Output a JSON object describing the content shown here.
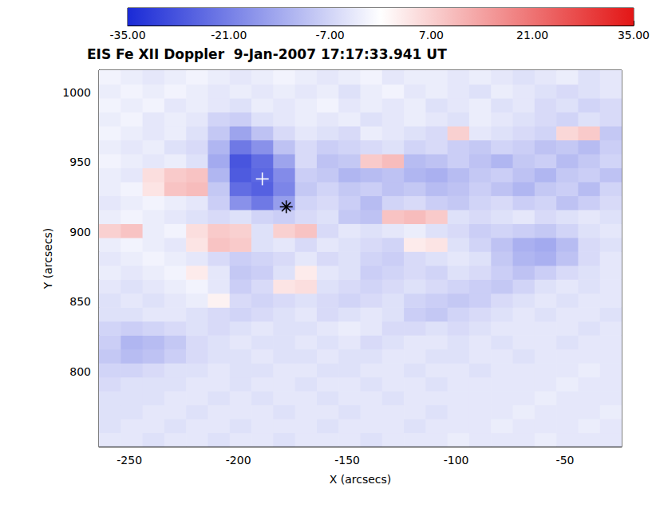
{
  "chart_data": {
    "type": "heatmap",
    "title": "EIS Fe XII Doppler  9-Jan-2007 17:17:33.941 UT",
    "xlabel": "X (arcsecs)",
    "ylabel": "Y (arcsecs)",
    "xlim": [
      -264,
      -24
    ],
    "ylim": [
      746,
      1016
    ],
    "xticks": [
      -250,
      -200,
      -150,
      -100,
      -50
    ],
    "yticks": [
      800,
      850,
      900,
      950,
      1000
    ],
    "grid": false,
    "x": [
      -259,
      -249,
      -239,
      -229,
      -219,
      -209,
      -199,
      -189,
      -179,
      -169,
      -159,
      -149,
      -139,
      -129,
      -119,
      -109,
      -99,
      -89,
      -79,
      -69,
      -59,
      -49,
      -39,
      -29
    ],
    "y": [
      751,
      761,
      771,
      781,
      791,
      801,
      811,
      821,
      831,
      841,
      851,
      861,
      871,
      881,
      891,
      901,
      911,
      921,
      931,
      941,
      951,
      961,
      971,
      981,
      991,
      1001,
      1011
    ],
    "cells": [
      [
        -4,
        -4,
        -5,
        -4,
        -4,
        -5,
        -4,
        -4,
        -5,
        -4,
        -4,
        -4,
        -5,
        -4,
        -4,
        -4,
        -3,
        -4,
        -4,
        -4,
        -3,
        -4,
        -4,
        -4
      ],
      [
        -5,
        -4,
        -4,
        -5,
        -4,
        -4,
        -5,
        -4,
        -4,
        -4,
        -5,
        -4,
        -4,
        -4,
        -5,
        -4,
        -4,
        -4,
        -3,
        -4,
        -4,
        -4,
        -3,
        -4
      ],
      [
        -5,
        -5,
        -4,
        -4,
        -5,
        -4,
        -4,
        -4,
        -5,
        -4,
        -4,
        -5,
        -4,
        -4,
        -4,
        -5,
        -4,
        -4,
        -4,
        -3,
        -4,
        -4,
        -4,
        -3
      ],
      [
        -5,
        -5,
        -5,
        -4,
        -4,
        -5,
        -4,
        -5,
        -4,
        -4,
        -5,
        -4,
        -4,
        -5,
        -4,
        -4,
        -4,
        -4,
        -4,
        -4,
        -3,
        -4,
        -4,
        -4
      ],
      [
        -6,
        -5,
        -5,
        -5,
        -4,
        -4,
        -5,
        -4,
        -4,
        -5,
        -4,
        -4,
        -5,
        -4,
        -4,
        -5,
        -4,
        -4,
        -4,
        -4,
        -4,
        -3,
        -4,
        -4
      ],
      [
        -7,
        -7,
        -6,
        -5,
        -5,
        -4,
        -5,
        -5,
        -4,
        -4,
        -5,
        -5,
        -4,
        -4,
        -5,
        -4,
        -4,
        -5,
        -4,
        -4,
        -4,
        -4,
        -3,
        -4
      ],
      [
        -9,
        -11,
        -10,
        -8,
        -6,
        -5,
        -5,
        -4,
        -5,
        -5,
        -4,
        -5,
        -5,
        -4,
        -4,
        -5,
        -5,
        -4,
        -4,
        -5,
        -4,
        -4,
        -4,
        -4
      ],
      [
        -8,
        -12,
        -11,
        -9,
        -6,
        -5,
        -4,
        -5,
        -5,
        -4,
        -5,
        -4,
        -6,
        -5,
        -4,
        -4,
        -5,
        -4,
        -5,
        -4,
        -4,
        -5,
        -4,
        -4
      ],
      [
        -7,
        -8,
        -7,
        -6,
        -5,
        -6,
        -5,
        -4,
        -5,
        -5,
        -4,
        -3,
        -4,
        -6,
        -6,
        -5,
        -6,
        -5,
        -4,
        -4,
        -4,
        -4,
        -5,
        -4
      ],
      [
        -5,
        -5,
        -4,
        -4,
        -5,
        -6,
        -7,
        -6,
        -5,
        -4,
        -6,
        -5,
        -4,
        -5,
        -8,
        -9,
        -7,
        -6,
        -5,
        -4,
        -5,
        -4,
        -4,
        -5
      ],
      [
        -5,
        -4,
        -5,
        -4,
        -3,
        2,
        -6,
        -7,
        -6,
        -5,
        -6,
        -7,
        -6,
        -5,
        -7,
        -8,
        -9,
        -8,
        -6,
        -5,
        -4,
        -5,
        -4,
        -4
      ],
      [
        -4,
        -5,
        -4,
        -3,
        -2,
        -4,
        -8,
        -6,
        4,
        5,
        -5,
        -6,
        -7,
        -6,
        -5,
        -6,
        -7,
        -8,
        -9,
        -7,
        -5,
        -4,
        -5,
        -4
      ],
      [
        -3,
        -4,
        -3,
        -2,
        3,
        -4,
        -9,
        -8,
        -5,
        3,
        -4,
        -5,
        -8,
        -7,
        -6,
        -7,
        -5,
        -6,
        -8,
        -10,
        -8,
        -6,
        -5,
        -4
      ],
      [
        -4,
        -3,
        -2,
        -3,
        -4,
        -6,
        -8,
        -7,
        -6,
        -4,
        -6,
        -5,
        -7,
        -8,
        -6,
        -5,
        -4,
        -5,
        -9,
        -12,
        -13,
        -10,
        -6,
        -4
      ],
      [
        -3,
        -2,
        -3,
        -4,
        4,
        9,
        8,
        -5,
        -4,
        -6,
        -4,
        -5,
        -6,
        -7,
        3,
        4,
        -5,
        -7,
        -10,
        -13,
        -14,
        -11,
        -6,
        -5
      ],
      [
        7,
        9,
        -3,
        -2,
        5,
        8,
        7,
        -5,
        7,
        9,
        -6,
        -4,
        -5,
        -4,
        -3,
        -5,
        -6,
        -8,
        -7,
        -8,
        -9,
        -7,
        -5,
        -4
      ],
      [
        -3,
        -2,
        -3,
        -4,
        -5,
        -6,
        -5,
        -7,
        -8,
        -6,
        -5,
        -9,
        -10,
        9,
        10,
        8,
        -5,
        -6,
        -5,
        -4,
        -6,
        -5,
        -4,
        -5
      ],
      [
        -4,
        -3,
        -2,
        -3,
        -4,
        -8,
        -18,
        -22,
        -16,
        -7,
        -6,
        -8,
        -11,
        -7,
        -6,
        -8,
        -9,
        -7,
        -6,
        -8,
        -7,
        -10,
        -8,
        -6
      ],
      [
        -3,
        -2,
        4,
        9,
        10,
        -9,
        -24,
        -26,
        -20,
        -9,
        -7,
        -9,
        -8,
        -10,
        -9,
        -11,
        -10,
        -8,
        -10,
        -12,
        -9,
        -8,
        -11,
        -7
      ],
      [
        -3,
        -4,
        5,
        8,
        9,
        -12,
        -27,
        -25,
        -19,
        -8,
        -9,
        -12,
        -11,
        -10,
        -12,
        -13,
        -11,
        -9,
        -8,
        -10,
        -12,
        -9,
        -8,
        -10
      ],
      [
        -2,
        -3,
        -4,
        -3,
        -5,
        -14,
        -28,
        -24,
        -15,
        -6,
        -10,
        -9,
        8,
        10,
        -11,
        -10,
        -8,
        -10,
        -12,
        -9,
        -8,
        -11,
        -9,
        -7
      ],
      [
        -3,
        -4,
        -3,
        -5,
        -6,
        -12,
        -22,
        -18,
        -10,
        -6,
        -8,
        -7,
        -6,
        -5,
        -7,
        -6,
        -8,
        -9,
        -7,
        -8,
        -10,
        -9,
        -11,
        -8
      ],
      [
        -2,
        -3,
        -4,
        -3,
        -5,
        -9,
        -15,
        -10,
        -6,
        -4,
        -5,
        -6,
        -3,
        -4,
        -5,
        -6,
        7,
        -4,
        -5,
        -6,
        -7,
        6,
        8,
        -9
      ],
      [
        -3,
        -2,
        -4,
        -3,
        -4,
        -7,
        -8,
        -5,
        -4,
        -3,
        -4,
        -3,
        -5,
        -4,
        -3,
        -4,
        -5,
        -3,
        -4,
        -5,
        -6,
        -7,
        -5,
        -6
      ],
      [
        -2,
        -3,
        -2,
        -4,
        -3,
        -4,
        -5,
        -3,
        -4,
        -3,
        -2,
        -4,
        -3,
        -4,
        -3,
        -5,
        -4,
        -3,
        -5,
        -4,
        -6,
        -5,
        -7,
        -6
      ],
      [
        -3,
        -2,
        -3,
        -2,
        -3,
        -4,
        -3,
        -4,
        -3,
        -4,
        -3,
        -5,
        -3,
        -2,
        -4,
        -3,
        -4,
        -5,
        -3,
        -4,
        -5,
        -6,
        -5,
        -4
      ],
      [
        -2,
        -3,
        -4,
        -3,
        -2,
        -3,
        -4,
        -3,
        -2,
        -3,
        -4,
        -3,
        -2,
        -4,
        -3,
        -3,
        -4,
        -3,
        -4,
        -5,
        -4,
        -3,
        -5,
        -4
      ]
    ],
    "colorbar": {
      "range": [
        -35,
        35
      ],
      "ticks": [
        {
          "value": -35,
          "label": "-35.00"
        },
        {
          "value": -21,
          "label": "-21.00"
        },
        {
          "value": -7,
          "label": "-7.00"
        },
        {
          "value": 7,
          "label": "7.00"
        },
        {
          "value": 21,
          "label": "21.00"
        },
        {
          "value": 35,
          "label": "35.00"
        }
      ],
      "colors": [
        "#1a2ad6",
        "#ffffff",
        "#e31616"
      ]
    },
    "points": [
      {
        "x": -189,
        "y": 938,
        "marker": "plus",
        "color": "#ffffff"
      },
      {
        "x": -178,
        "y": 918,
        "marker": "asterisk",
        "color": "#000000"
      }
    ]
  }
}
